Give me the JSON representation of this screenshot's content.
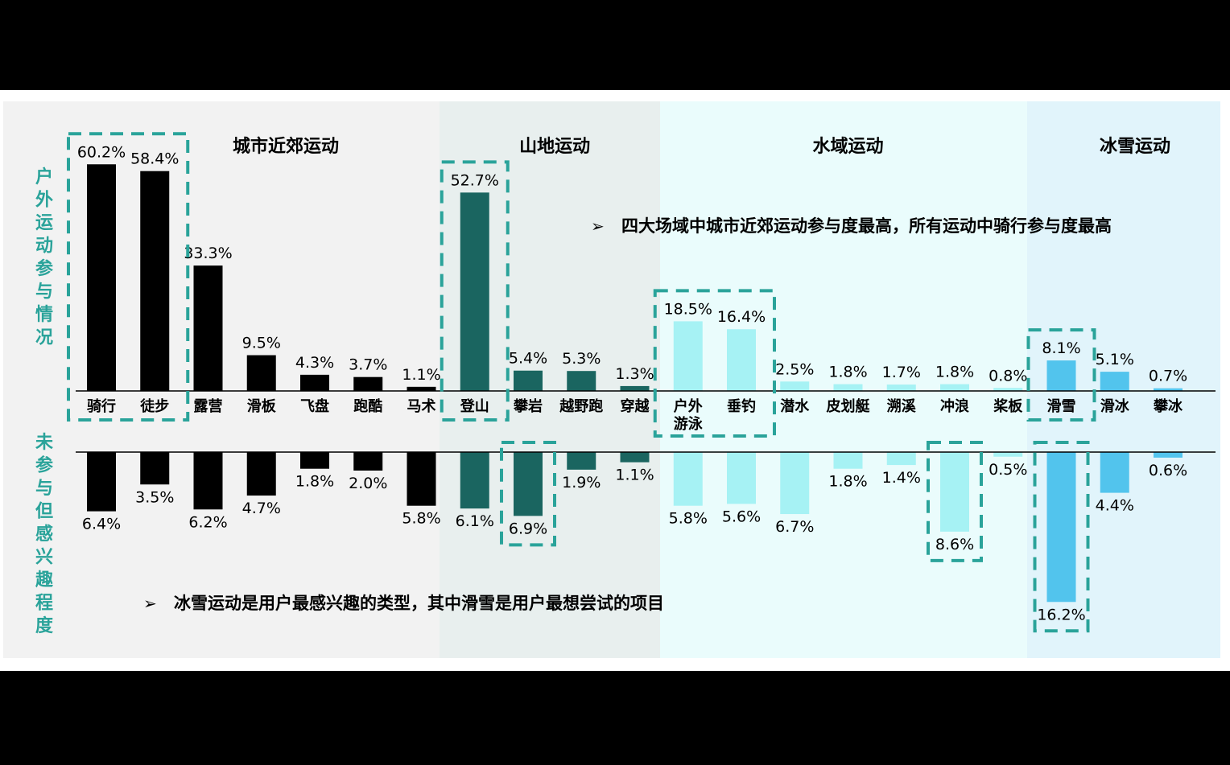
{
  "groups": [
    {
      "name": "城市近郊运动",
      "color": "#000000",
      "bg": "#f2f2f2"
    },
    {
      "name": "山地运动",
      "color": "#1a6560",
      "bg": "#e8efee"
    },
    {
      "name": "水域运动",
      "color": "#a6f2f4",
      "bg": "#eafcfc"
    },
    {
      "name": "冰雪运动",
      "color": "#52c4ed",
      "bg": "#e1f4fb"
    }
  ],
  "colors": {
    "highlight_box": "#2aa39a",
    "axis_label": "#2aa39a"
  },
  "ylabel_top": "户外运动参与情况",
  "ylabel_bottom": "未参与但感兴趣程度",
  "notes": [
    {
      "symbol": "➢",
      "text": "四大场域中城市近郊运动参与度最高，所有运动中骑行参与度最高"
    },
    {
      "symbol": "➢",
      "text": "冰雪运动是用户最感兴趣的类型，其中滑雪是用户最想尝试的项目"
    }
  ],
  "chart_data": {
    "type": "bar",
    "categories": [
      "骑行",
      "徒步",
      "露营",
      "滑板",
      "飞盘",
      "跑酷",
      "马术",
      "登山",
      "攀岩",
      "越野跑",
      "穿越",
      "户外游泳",
      "垂钓",
      "潜水",
      "皮划艇",
      "溯溪",
      "冲浪",
      "桨板",
      "滑雪",
      "滑冰",
      "攀冰"
    ],
    "category_groups": [
      0,
      0,
      0,
      0,
      0,
      0,
      0,
      1,
      1,
      1,
      1,
      2,
      2,
      2,
      2,
      2,
      2,
      2,
      3,
      3,
      3
    ],
    "series": [
      {
        "name": "户外运动参与情况",
        "values": [
          60.2,
          58.4,
          33.3,
          9.5,
          4.3,
          3.7,
          1.1,
          52.7,
          5.4,
          5.3,
          1.3,
          18.5,
          16.4,
          2.5,
          1.8,
          1.7,
          1.8,
          0.8,
          8.1,
          5.1,
          0.7
        ]
      },
      {
        "name": "未参与但感兴趣程度",
        "values": [
          6.4,
          3.5,
          6.2,
          4.7,
          1.8,
          2.0,
          5.8,
          6.1,
          6.9,
          1.9,
          1.1,
          5.8,
          5.6,
          6.7,
          1.8,
          1.4,
          8.6,
          0.5,
          16.2,
          4.4,
          0.6
        ]
      }
    ],
    "value_suffix": "%",
    "highlighted_top": [
      "骑行",
      "徒步",
      "登山",
      "户外游泳",
      "垂钓",
      "滑雪"
    ],
    "highlighted_bottom": [
      "攀岩",
      "冲浪",
      "滑雪"
    ]
  }
}
